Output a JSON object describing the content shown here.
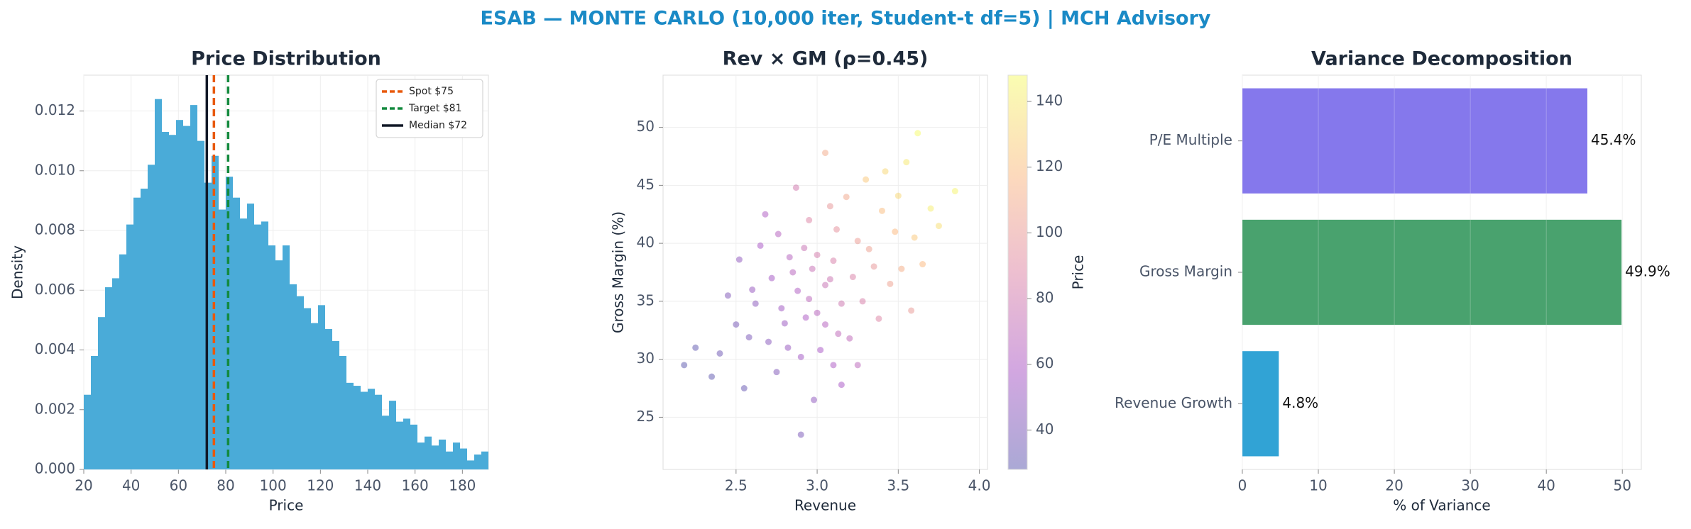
{
  "title": "ESAB — MONTE CARLO (10,000 iter, Student-t df=5) | MCH Advisory",
  "chart_data": [
    {
      "type": "histogram",
      "title": "Price Distribution",
      "xlabel": "Price",
      "ylabel": "Density",
      "color": "#4aabd8",
      "grid": true,
      "legend": "upper right",
      "bins": [
        20,
        23,
        26,
        29,
        32,
        35,
        38,
        41,
        44,
        47,
        50,
        53,
        56,
        59,
        62,
        65,
        68,
        71,
        74,
        77,
        80,
        83,
        86,
        89,
        92,
        95,
        98,
        101,
        104,
        107,
        110,
        113,
        116,
        119,
        122,
        125,
        128,
        131,
        134,
        137,
        140,
        143,
        146,
        149,
        152,
        155,
        158,
        161,
        164,
        167,
        170,
        173,
        176,
        179,
        182,
        185,
        188,
        191
      ],
      "values": [
        0.0025,
        0.0038,
        0.0051,
        0.0061,
        0.0064,
        0.0072,
        0.0082,
        0.0091,
        0.0094,
        0.0102,
        0.0124,
        0.0113,
        0.0112,
        0.0117,
        0.0115,
        0.0122,
        0.011,
        0.0096,
        0.0105,
        0.0087,
        0.0098,
        0.0091,
        0.0084,
        0.0089,
        0.0082,
        0.0083,
        0.0075,
        0.007,
        0.0075,
        0.0062,
        0.0058,
        0.0054,
        0.0049,
        0.0055,
        0.0047,
        0.0043,
        0.0038,
        0.0029,
        0.0028,
        0.0026,
        0.0027,
        0.0025,
        0.0018,
        0.0023,
        0.0016,
        0.0017,
        0.0015,
        0.0009,
        0.0011,
        0.0008,
        0.001,
        0.0006,
        0.0009,
        0.0007,
        0.0003,
        0.0005,
        0.0006
      ],
      "vlines": [
        {
          "name": "Spot $75",
          "value": 75,
          "color": "#e8590c",
          "style": "dashed"
        },
        {
          "name": "Target $81",
          "value": 81,
          "color": "#138a3e",
          "style": "dashed"
        },
        {
          "name": "Median $72",
          "value": 72,
          "color": "#111827",
          "style": "solid"
        }
      ],
      "xlim": [
        20,
        191
      ],
      "xticks": [
        20,
        40,
        60,
        80,
        100,
        120,
        140,
        160,
        180
      ],
      "ylim": [
        0,
        0.0132
      ],
      "yticks": [
        {
          "value": 0,
          "label": "0.000"
        },
        {
          "value": 0.002,
          "label": "0.002"
        },
        {
          "value": 0.004,
          "label": "0.004"
        },
        {
          "value": 0.006,
          "label": "0.006"
        },
        {
          "value": 0.008,
          "label": "0.008"
        },
        {
          "value": 0.01,
          "label": "0.010"
        },
        {
          "value": 0.012,
          "label": "0.012"
        }
      ]
    },
    {
      "type": "scatter",
      "title": "Rev × GM (ρ=0.45)",
      "xlabel": "Revenue",
      "ylabel": "Gross Margin (%)",
      "grid": true,
      "colormap": [
        "#0d0887",
        "#7e03a8",
        "#cc4778",
        "#f89540",
        "#f0f921"
      ],
      "alpha": 0.35,
      "clabel": "Price",
      "clim": [
        28,
        148
      ],
      "cticks": [
        40,
        60,
        80,
        100,
        120,
        140
      ],
      "x": [
        2.95,
        3.1,
        2.8,
        3.25,
        2.7,
        3.4,
        3.05,
        2.9,
        3.15,
        2.6,
        3.5,
        3.0,
        2.85,
        3.2,
        2.75,
        3.35,
        2.95,
        3.6,
        2.5,
        3.1,
        3.3,
        2.65,
        3.05,
        2.88,
        3.45,
        2.4,
        3.7,
        3.12,
        2.78,
        3.22,
        2.55,
        3.55,
        2.98,
        3.38,
        2.68,
        3.08,
        2.92,
        3.28,
        2.82,
        3.65,
        2.45,
        3.18,
        3.02,
        2.72,
        3.48,
        2.58,
        3.85,
        3.15,
        2.87,
        3.32,
        2.25,
        3.0,
        2.93,
        3.42,
        2.62,
        3.25,
        2.97,
        3.08,
        2.35,
        3.75,
        2.83,
        3.52,
        3.13,
        2.76,
        3.58,
        2.18,
        3.05,
        2.9,
        3.62,
        2.52
      ],
      "values": [
        35.2,
        38.5,
        33.1,
        40.2,
        31.5,
        42.8,
        36.4,
        30.2,
        34.8,
        36.0,
        44.1,
        39.0,
        37.5,
        31.8,
        28.9,
        38.0,
        42.0,
        40.5,
        33.0,
        29.5,
        45.5,
        39.8,
        33.0,
        35.9,
        36.5,
        30.5,
        43.0,
        41.2,
        34.4,
        37.1,
        27.5,
        47.0,
        26.5,
        33.5,
        42.5,
        36.9,
        39.6,
        35.0,
        31.0,
        38.2,
        35.5,
        44.0,
        30.8,
        37.0,
        41.0,
        31.9,
        44.5,
        27.8,
        44.8,
        39.5,
        31.0,
        34.0,
        33.6,
        46.2,
        34.8,
        29.5,
        37.8,
        43.2,
        28.5,
        41.5,
        38.8,
        37.8,
        32.2,
        40.8,
        34.2,
        29.5,
        47.8,
        23.5,
        49.5,
        38.6
      ],
      "c_values": [
        68,
        85,
        52,
        102,
        45,
        120,
        75,
        55,
        78,
        50,
        132,
        82,
        66,
        70,
        42,
        98,
        88,
        125,
        38,
        60,
        125,
        58,
        64,
        62,
        105,
        35,
        142,
        95,
        54,
        86,
        32,
        140,
        48,
        88,
        62,
        77,
        75,
        84,
        50,
        118,
        42,
        108,
        58,
        56,
        118,
        40,
        145,
        58,
        80,
        104,
        30,
        66,
        60,
        132,
        46,
        68,
        74,
        98,
        30,
        135,
        65,
        112,
        70,
        64,
        100,
        28,
        110,
        40,
        148,
        48
      ],
      "xlim": [
        2.05,
        4.05
      ],
      "xticks": [
        2.5,
        {
          "value": 3,
          "label": "3.0"
        },
        3.5,
        {
          "value": 4,
          "label": "4.0"
        }
      ],
      "ylim": [
        20.5,
        54.5
      ],
      "yticks": [
        25,
        30,
        35,
        40,
        45,
        50
      ]
    },
    {
      "type": "bar",
      "orientation": "horizontal",
      "title": "Variance Decomposition",
      "xlabel": "% of Variance",
      "grid": true,
      "categories": [
        "P/E Multiple",
        "Gross Margin",
        "Revenue Growth"
      ],
      "values": [
        45.4,
        49.9,
        4.8
      ],
      "value_labels": [
        "45.4%",
        "49.9%",
        "4.8%"
      ],
      "colors": [
        "#7b6cea",
        "#3a9a62",
        "#1f9bd1"
      ],
      "xlim": [
        0,
        52.5
      ],
      "xticks": [
        0,
        10,
        20,
        30,
        40,
        50
      ]
    }
  ]
}
